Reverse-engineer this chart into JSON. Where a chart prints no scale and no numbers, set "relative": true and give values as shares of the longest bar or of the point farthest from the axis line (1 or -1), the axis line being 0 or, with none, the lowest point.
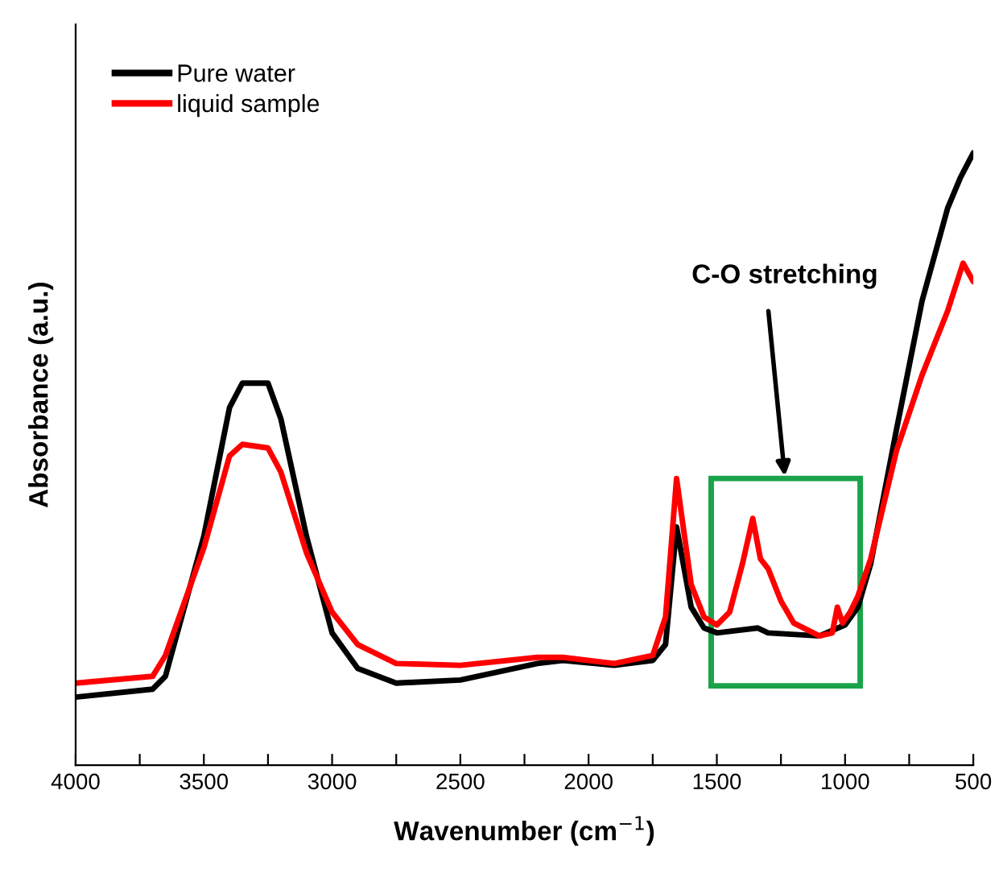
{
  "chart_data": {
    "type": "line",
    "relative": true,
    "xlabel": "Wavenumber (cm$^{−1}$)",
    "ylabel": "Absorbance (a.u.)",
    "xlim": [
      4000,
      500
    ],
    "xticks": [
      4000,
      {
        "value": 3750,
        "label": null
      },
      3500,
      {
        "value": 3250,
        "label": null
      },
      3000,
      {
        "value": 2750,
        "label": null
      },
      2500,
      {
        "value": 2250,
        "label": null
      },
      2000,
      {
        "value": 1750,
        "label": null
      },
      1500,
      {
        "value": 1250,
        "label": null
      },
      1000,
      {
        "value": 750,
        "label": null
      },
      500
    ],
    "tick_labels": "x",
    "grid": false,
    "legend": "top left",
    "marker": "none",
    "line_style": "solid",
    "annotations": [
      "C-O stretching"
    ],
    "series": [
      {
        "name": "Pure water",
        "color": "#000000",
        "x": [
          4000,
          3700,
          3650,
          3500,
          3400,
          3350,
          3250,
          3200,
          3100,
          3000,
          2900,
          2750,
          2500,
          2200,
          2100,
          1900,
          1750,
          1700,
          1657,
          1600,
          1550,
          1500,
          1340,
          1300,
          1100,
          1000,
          950,
          900,
          800,
          700,
          600,
          550,
          500
        ],
        "values": [
          0.111,
          0.124,
          0.145,
          0.374,
          0.584,
          0.624,
          0.624,
          0.566,
          0.374,
          0.216,
          0.158,
          0.134,
          0.139,
          0.166,
          0.171,
          0.163,
          0.171,
          0.197,
          0.389,
          0.258,
          0.224,
          0.216,
          0.224,
          0.216,
          0.211,
          0.229,
          0.258,
          0.329,
          0.547,
          0.758,
          0.91,
          0.96,
          1.0
        ]
      },
      {
        "name": "liquid sample",
        "color": "#ff0000",
        "x": [
          4000,
          3700,
          3650,
          3500,
          3400,
          3350,
          3250,
          3200,
          3100,
          3000,
          2900,
          2750,
          2500,
          2200,
          2100,
          1900,
          1750,
          1700,
          1657,
          1600,
          1550,
          1500,
          1450,
          1400,
          1360,
          1330,
          1300,
          1250,
          1200,
          1100,
          1050,
          1030,
          1010,
          980,
          950,
          900,
          800,
          700,
          600,
          540,
          500
        ],
        "values": [
          0.134,
          0.145,
          0.179,
          0.355,
          0.505,
          0.524,
          0.518,
          0.479,
          0.347,
          0.25,
          0.197,
          0.166,
          0.163,
          0.176,
          0.176,
          0.166,
          0.179,
          0.242,
          0.468,
          0.295,
          0.242,
          0.229,
          0.25,
          0.329,
          0.403,
          0.337,
          0.321,
          0.268,
          0.232,
          0.211,
          0.216,
          0.258,
          0.232,
          0.25,
          0.276,
          0.337,
          0.513,
          0.637,
          0.742,
          0.82,
          0.79
        ]
      }
    ]
  }
}
